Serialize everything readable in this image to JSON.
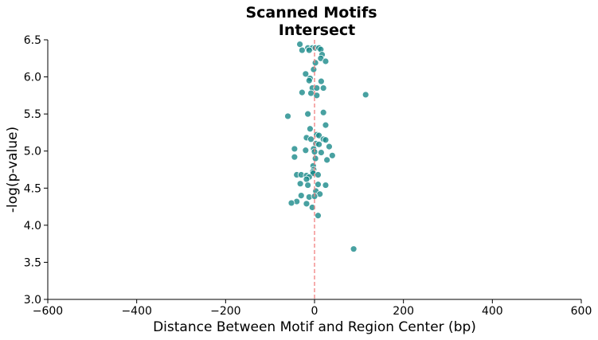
{
  "chart_data": {
    "type": "scatter",
    "title_lines": [
      "Scanned Motifs",
      "Intersect"
    ],
    "xlabel": "Distance Between Motif and Region Center (bp)",
    "ylabel": "-log(p-value)",
    "xlim": [
      -600,
      600
    ],
    "ylim": [
      3.0,
      6.5
    ],
    "xticks": [
      -600,
      -400,
      -200,
      0,
      200,
      400,
      600
    ],
    "xtick_labels": [
      "−600",
      "−400",
      "−200",
      "0",
      "200",
      "400",
      "600"
    ],
    "yticks": [
      3.0,
      3.5,
      4.0,
      4.5,
      5.0,
      5.5,
      6.0,
      6.5
    ],
    "ytick_labels": [
      "3.0",
      "3.5",
      "4.0",
      "4.5",
      "5.0",
      "5.5",
      "6.0",
      "6.5"
    ],
    "grid": false,
    "reference_line": {
      "orientation": "vertical",
      "x": 0,
      "style": "dashed",
      "color": "#f08080"
    },
    "point_color": "#1a8a8a",
    "points": [
      {
        "x": -33,
        "y": 6.44
      },
      {
        "x": -15,
        "y": 6.39
      },
      {
        "x": -5,
        "y": 6.39
      },
      {
        "x": 2,
        "y": 6.39
      },
      {
        "x": 10,
        "y": 6.39
      },
      {
        "x": 14,
        "y": 6.37
      },
      {
        "x": -28,
        "y": 6.36
      },
      {
        "x": -12,
        "y": 6.36
      },
      {
        "x": 17,
        "y": 6.3
      },
      {
        "x": 14,
        "y": 6.25
      },
      {
        "x": 25,
        "y": 6.21
      },
      {
        "x": 2,
        "y": 6.19
      },
      {
        "x": -2,
        "y": 6.1
      },
      {
        "x": -20,
        "y": 6.04
      },
      {
        "x": -10,
        "y": 5.98
      },
      {
        "x": -12,
        "y": 5.95
      },
      {
        "x": 15,
        "y": 5.94
      },
      {
        "x": -5,
        "y": 5.85
      },
      {
        "x": 5,
        "y": 5.85
      },
      {
        "x": 20,
        "y": 5.85
      },
      {
        "x": -28,
        "y": 5.79
      },
      {
        "x": -8,
        "y": 5.78
      },
      {
        "x": 5,
        "y": 5.75
      },
      {
        "x": 115,
        "y": 5.76
      },
      {
        "x": 20,
        "y": 5.52
      },
      {
        "x": -15,
        "y": 5.5
      },
      {
        "x": -60,
        "y": 5.47
      },
      {
        "x": 25,
        "y": 5.35
      },
      {
        "x": -10,
        "y": 5.3
      },
      {
        "x": 5,
        "y": 5.22
      },
      {
        "x": 10,
        "y": 5.21
      },
      {
        "x": -18,
        "y": 5.18
      },
      {
        "x": -8,
        "y": 5.16
      },
      {
        "x": 20,
        "y": 5.16
      },
      {
        "x": 25,
        "y": 5.15
      },
      {
        "x": 3,
        "y": 5.1
      },
      {
        "x": 10,
        "y": 5.09
      },
      {
        "x": 33,
        "y": 5.06
      },
      {
        "x": -45,
        "y": 5.03
      },
      {
        "x": -20,
        "y": 5.01
      },
      {
        "x": -2,
        "y": 5.03
      },
      {
        "x": 0,
        "y": 4.99
      },
      {
        "x": 15,
        "y": 4.98
      },
      {
        "x": 40,
        "y": 4.94
      },
      {
        "x": -45,
        "y": 4.92
      },
      {
        "x": 2,
        "y": 4.9
      },
      {
        "x": 28,
        "y": 4.88
      },
      {
        "x": -3,
        "y": 4.8
      },
      {
        "x": -2,
        "y": 4.75
      },
      {
        "x": -4,
        "y": 4.72
      },
      {
        "x": -3,
        "y": 4.7
      },
      {
        "x": -40,
        "y": 4.68
      },
      {
        "x": -30,
        "y": 4.68
      },
      {
        "x": -18,
        "y": 4.67
      },
      {
        "x": 8,
        "y": 4.68
      },
      {
        "x": -12,
        "y": 4.65
      },
      {
        "x": -18,
        "y": 4.62
      },
      {
        "x": -32,
        "y": 4.56
      },
      {
        "x": -15,
        "y": 4.54
      },
      {
        "x": 8,
        "y": 4.55
      },
      {
        "x": 25,
        "y": 4.54
      },
      {
        "x": 3,
        "y": 4.46
      },
      {
        "x": 12,
        "y": 4.42
      },
      {
        "x": -30,
        "y": 4.4
      },
      {
        "x": -12,
        "y": 4.38
      },
      {
        "x": 0,
        "y": 4.39
      },
      {
        "x": -40,
        "y": 4.32
      },
      {
        "x": -52,
        "y": 4.3
      },
      {
        "x": -18,
        "y": 4.29
      },
      {
        "x": -5,
        "y": 4.24
      },
      {
        "x": 8,
        "y": 4.13
      },
      {
        "x": 88,
        "y": 3.68
      }
    ]
  }
}
